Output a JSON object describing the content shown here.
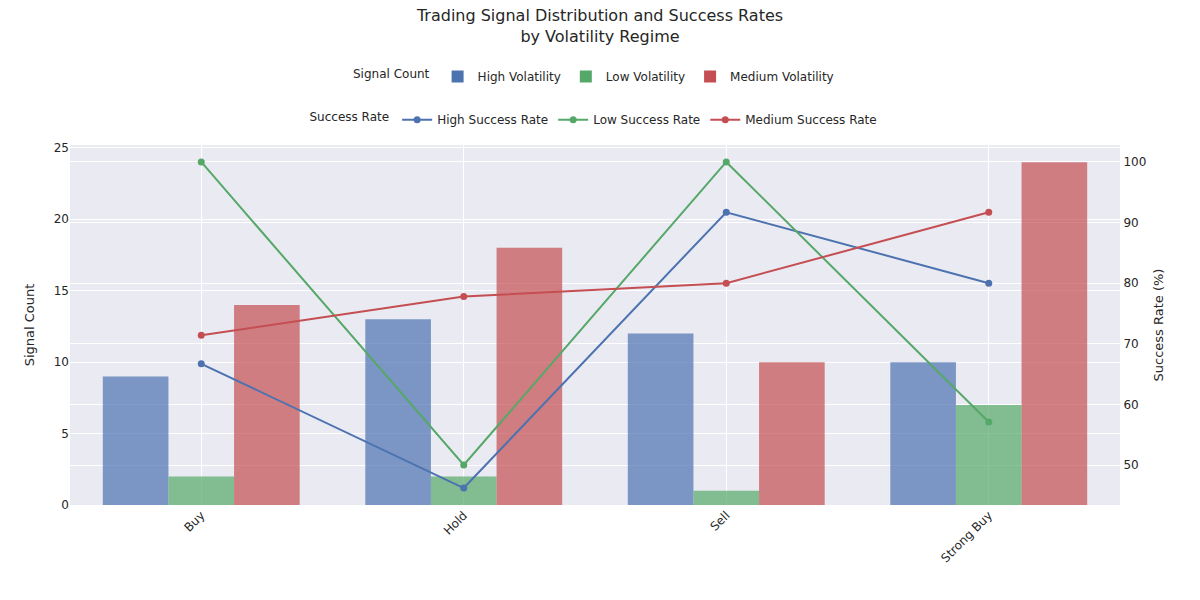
{
  "chart_data": {
    "type": "bar",
    "title": "Trading Signal Distribution and Success Rates\nby Volatility Regime",
    "categories": [
      "Buy",
      "Hold",
      "Sell",
      "Strong Buy"
    ],
    "y_label": "Signal Count",
    "y2_label": "Success Rate (%)",
    "legend_titles": [
      "Signal Count",
      "Success Rate"
    ],
    "series": [
      {
        "name": "High Volatility",
        "color": "#4C72B0",
        "values": [
          9,
          13,
          12,
          10
        ]
      },
      {
        "name": "Low Volatility",
        "color": "#55A868",
        "values": [
          2,
          2,
          1,
          7
        ]
      },
      {
        "name": "Medium Volatility",
        "color": "#C44E52",
        "values": [
          14,
          18,
          10,
          24
        ]
      },
      {
        "name": "High Success Rate",
        "type": "line",
        "axis": "y2",
        "color": "#4C72B0",
        "marker": "circle",
        "line_style": "solid",
        "values": [
          66.7,
          46.2,
          91.7,
          80.0
        ]
      },
      {
        "name": "Low Success Rate",
        "type": "line",
        "axis": "y2",
        "color": "#55A868",
        "marker": "circle",
        "line_style": "solid",
        "values": [
          100.0,
          50.0,
          100.0,
          57.1
        ]
      },
      {
        "name": "Medium Success Rate",
        "type": "line",
        "axis": "y2",
        "color": "#C44E52",
        "marker": "circle",
        "line_style": "solid",
        "values": [
          71.4,
          77.8,
          80.0,
          91.7
        ]
      }
    ],
    "ylim": [
      0,
      25.2
    ],
    "yticks": [
      0,
      5,
      10,
      15,
      20,
      25
    ],
    "y2lim": [
      43.4,
      102.8
    ],
    "y2ticks": [
      50,
      60,
      70,
      80,
      90,
      100
    ],
    "grid": true
  }
}
